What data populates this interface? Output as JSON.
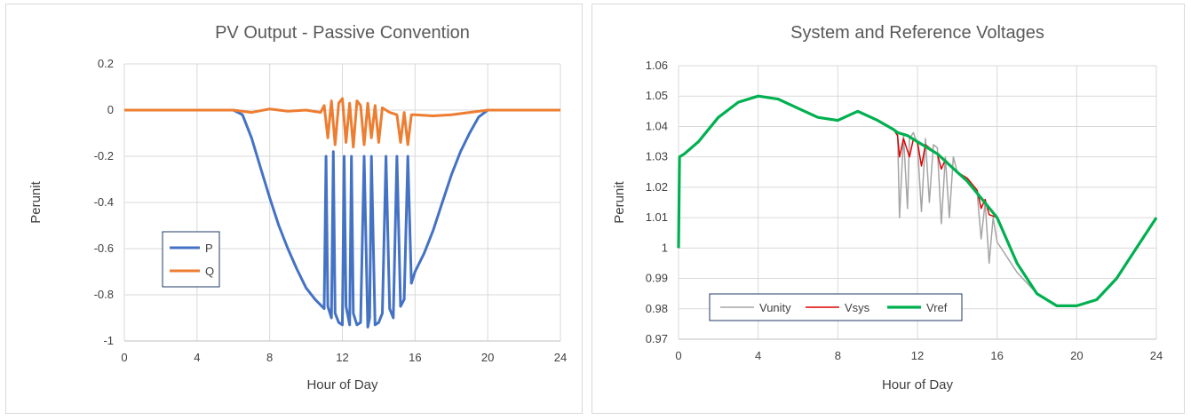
{
  "chart_data": [
    {
      "type": "line",
      "title": "PV Output - Passive Convention",
      "xlabel": "Hour of Day",
      "ylabel": "Perunit",
      "xlim": [
        0,
        24
      ],
      "ylim": [
        -1,
        0.2
      ],
      "xticks": [
        0,
        4,
        8,
        12,
        16,
        20,
        24
      ],
      "yticks": [
        -1,
        -0.8,
        -0.6,
        -0.4,
        -0.2,
        0,
        0.2
      ],
      "ytick_labels": [
        "-1",
        "-0.8",
        "-0.6",
        "-0.4",
        "-0.2",
        "0",
        "0.2"
      ],
      "grid": true,
      "legend": "center-left",
      "series": [
        {
          "name": "P",
          "color": "#4472c4",
          "x": [
            0,
            6,
            6.5,
            7,
            7.5,
            8,
            8.5,
            9,
            9.5,
            10,
            10.5,
            11,
            11.1,
            11.2,
            11.4,
            11.5,
            11.6,
            11.8,
            12,
            12.1,
            12.2,
            12.4,
            12.5,
            12.6,
            12.8,
            13,
            13.2,
            13.4,
            13.5,
            13.6,
            13.8,
            14,
            14.2,
            14.4,
            14.6,
            14.8,
            15,
            15.2,
            15.4,
            15.6,
            15.8,
            16,
            16.5,
            17,
            17.5,
            18,
            18.5,
            19,
            19.5,
            20,
            24
          ],
          "y": [
            0,
            0,
            -0.02,
            -0.12,
            -0.25,
            -0.38,
            -0.5,
            -0.6,
            -0.69,
            -0.77,
            -0.82,
            -0.86,
            -0.2,
            -0.85,
            -0.9,
            -0.18,
            -0.88,
            -0.92,
            -0.93,
            -0.2,
            -0.85,
            -0.93,
            -0.2,
            -0.88,
            -0.93,
            -0.92,
            -0.2,
            -0.94,
            -0.9,
            -0.2,
            -0.93,
            -0.92,
            -0.88,
            -0.2,
            -0.86,
            -0.9,
            -0.2,
            -0.85,
            -0.82,
            -0.2,
            -0.75,
            -0.7,
            -0.62,
            -0.52,
            -0.4,
            -0.28,
            -0.18,
            -0.1,
            -0.03,
            0,
            0
          ]
        },
        {
          "name": "Q",
          "color": "#ed7d31",
          "x": [
            0,
            6,
            7,
            8,
            9,
            10,
            10.8,
            11,
            11.2,
            11.4,
            11.6,
            11.8,
            12,
            12.2,
            12.4,
            12.6,
            12.8,
            13,
            13.2,
            13.4,
            13.6,
            13.8,
            14,
            14.2,
            14.6,
            15,
            15.2,
            15.4,
            15.6,
            15.8,
            16,
            17,
            18,
            19,
            20,
            24
          ],
          "y": [
            0,
            0,
            -0.01,
            0.005,
            -0.005,
            0,
            -0.01,
            0.02,
            -0.12,
            0.04,
            -0.15,
            0.03,
            0.05,
            -0.14,
            0.03,
            -0.16,
            0.04,
            0.02,
            -0.15,
            0.03,
            -0.12,
            0.02,
            -0.14,
            0.01,
            -0.01,
            -0.02,
            -0.14,
            -0.01,
            -0.15,
            -0.02,
            -0.02,
            -0.025,
            -0.02,
            -0.01,
            0,
            0
          ]
        }
      ]
    },
    {
      "type": "line",
      "title": "System and Reference Voltages",
      "xlabel": "Hour of Day",
      "ylabel": "Perunit",
      "xlim": [
        0,
        24
      ],
      "ylim": [
        0.97,
        1.06
      ],
      "xticks": [
        0,
        4,
        8,
        12,
        16,
        20,
        24
      ],
      "yticks": [
        0.97,
        0.98,
        0.99,
        1,
        1.01,
        1.02,
        1.03,
        1.04,
        1.05,
        1.06
      ],
      "ytick_labels": [
        "0.97",
        "0.98",
        "0.99",
        "1",
        "1.01",
        "1.02",
        "1.03",
        "1.04",
        "1.05",
        "1.06"
      ],
      "grid": true,
      "legend": "bottom-left",
      "series": [
        {
          "name": "Vunity",
          "color": "#a5a5a5",
          "x": [
            0,
            0.05,
            0.3,
            1,
            2,
            3,
            4,
            5,
            6,
            7,
            8,
            9,
            10,
            10.8,
            11,
            11.1,
            11.3,
            11.5,
            11.6,
            11.8,
            12,
            12.2,
            12.4,
            12.6,
            12.8,
            13,
            13.2,
            13.4,
            13.6,
            13.8,
            14,
            14.5,
            15,
            15.2,
            15.4,
            15.6,
            15.8,
            16,
            17,
            18,
            19,
            20,
            21,
            22,
            23,
            24
          ],
          "y": [
            1.0,
            1.03,
            1.031,
            1.035,
            1.043,
            1.048,
            1.05,
            1.049,
            1.046,
            1.043,
            1.042,
            1.045,
            1.042,
            1.039,
            1.038,
            1.01,
            1.037,
            1.013,
            1.036,
            1.038,
            1.034,
            1.012,
            1.036,
            1.015,
            1.034,
            1.033,
            1.008,
            1.03,
            1.01,
            1.03,
            1.025,
            1.022,
            1.018,
            1.003,
            1.015,
            0.995,
            1.01,
            1.002,
            0.992,
            0.985,
            0.981,
            0.981,
            0.983,
            0.99,
            1.0,
            1.01
          ]
        },
        {
          "name": "Vsys",
          "color": "#e00000",
          "x": [
            0,
            0.05,
            0.3,
            1,
            2,
            3,
            4,
            5,
            6,
            7,
            8,
            9,
            10,
            10.8,
            11,
            11.1,
            11.3,
            11.6,
            11.8,
            12,
            12.2,
            12.4,
            12.8,
            13,
            13.2,
            13.4,
            14,
            14.5,
            15,
            15.2,
            15.4,
            15.6,
            16,
            17,
            18,
            19,
            20,
            21,
            22,
            23,
            24
          ],
          "y": [
            1.0,
            1.03,
            1.031,
            1.035,
            1.043,
            1.048,
            1.05,
            1.049,
            1.046,
            1.043,
            1.042,
            1.045,
            1.042,
            1.039,
            1.037,
            1.03,
            1.036,
            1.03,
            1.036,
            1.035,
            1.027,
            1.034,
            1.032,
            1.031,
            1.026,
            1.029,
            1.025,
            1.023,
            1.019,
            1.013,
            1.016,
            1.011,
            1.01,
            0.995,
            0.985,
            0.981,
            0.981,
            0.983,
            0.99,
            1.0,
            1.01
          ]
        },
        {
          "name": "Vref",
          "color": "#00b050",
          "x": [
            0,
            0.05,
            0.3,
            1,
            2,
            3,
            4,
            5,
            6,
            7,
            8,
            9,
            10,
            10.8,
            11,
            11.5,
            12,
            12.5,
            13,
            13.5,
            14,
            14.5,
            15,
            15.5,
            16,
            17,
            18,
            19,
            20,
            21,
            22,
            23,
            24
          ],
          "y": [
            1.0,
            1.03,
            1.031,
            1.035,
            1.043,
            1.048,
            1.05,
            1.049,
            1.046,
            1.043,
            1.042,
            1.045,
            1.042,
            1.039,
            1.038,
            1.037,
            1.035,
            1.033,
            1.031,
            1.028,
            1.025,
            1.022,
            1.018,
            1.014,
            1.01,
            0.995,
            0.985,
            0.981,
            0.981,
            0.983,
            0.99,
            1.0,
            1.01
          ]
        }
      ]
    }
  ]
}
